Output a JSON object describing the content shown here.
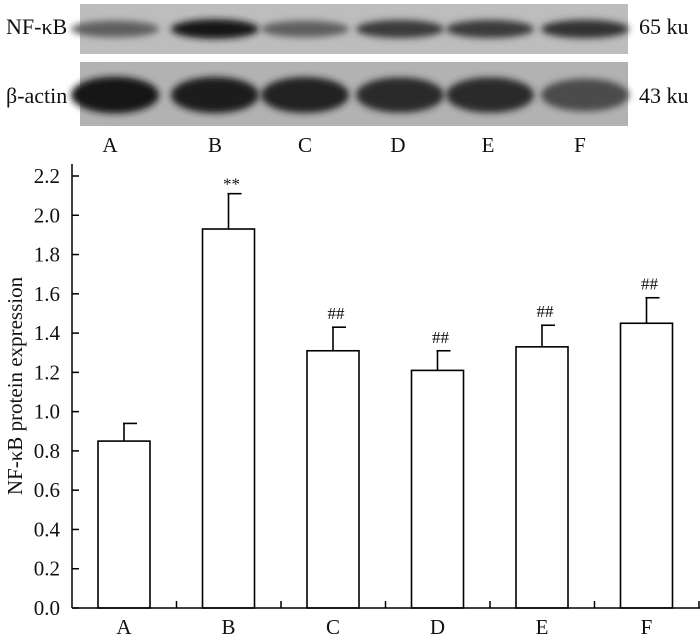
{
  "blot": {
    "panels": [
      {
        "label": "NF-κB",
        "size": "65 ku",
        "band_intensity": [
          0.55,
          0.95,
          0.55,
          0.75,
          0.75,
          0.8
        ]
      },
      {
        "label": "β-actin",
        "size": "43 ku",
        "band_intensity": [
          0.95,
          0.92,
          0.9,
          0.85,
          0.85,
          0.65
        ]
      }
    ],
    "lane_labels": [
      "A",
      "B",
      "C",
      "D",
      "E",
      "F"
    ]
  },
  "chart_data": {
    "type": "bar",
    "categories": [
      "A",
      "B",
      "C",
      "D",
      "E",
      "F"
    ],
    "values": [
      0.85,
      1.93,
      1.31,
      1.21,
      1.33,
      1.45
    ],
    "errors": [
      0.09,
      0.18,
      0.12,
      0.1,
      0.11,
      0.13
    ],
    "annotations": [
      "",
      "**",
      "##",
      "##",
      "##",
      "##"
    ],
    "ylabel": "NF-κB protein expression",
    "xlabel": "",
    "ylim": [
      0,
      2.2
    ],
    "yticks": [
      "0.0",
      "0.2",
      "0.4",
      "0.6",
      "0.8",
      "1.0",
      "1.2",
      "1.4",
      "1.6",
      "1.8",
      "2.0",
      "2.2"
    ],
    "bar_fill": "#ffffff",
    "bar_stroke": "#000000",
    "grid": false
  }
}
